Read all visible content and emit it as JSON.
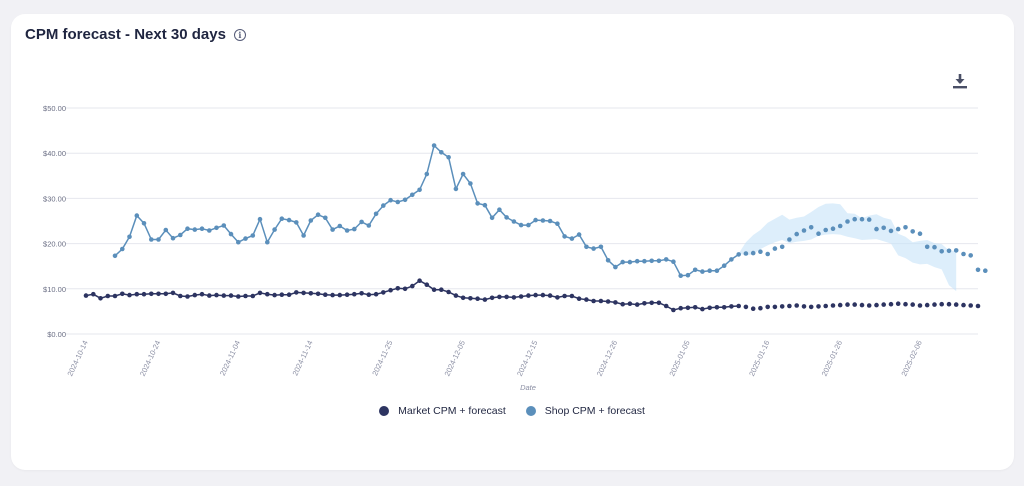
{
  "card": {
    "title": "CPM forecast - Next 30 days",
    "info_icon": "info-icon",
    "download_icon": "download-icon"
  },
  "legend": [
    {
      "label": "Market CPM + forecast",
      "color": "#2d3461"
    },
    {
      "label": "Shop CPM + forecast",
      "color": "#5b8fbb"
    }
  ],
  "chart_data": {
    "type": "line",
    "xlabel": "Date",
    "ylabel": "",
    "ylim": [
      0,
      50
    ],
    "y_ticks": [
      "$0.00",
      "$10.00",
      "$20.00",
      "$30.00",
      "$40.00",
      "$50.00"
    ],
    "y_tick_values": [
      0,
      10,
      20,
      30,
      40,
      50
    ],
    "x_start": "2024-10-14",
    "x_end": "2025-02-11",
    "forecast_start_index": 90,
    "x_tick_labels": [
      "2024-10-14",
      "2024-10-24",
      "2024-11-04",
      "2024-11-14",
      "2024-11-25",
      "2024-12-05",
      "2024-12-15",
      "2024-12-26",
      "2025-01-05",
      "2025-01-16",
      "2025-01-26",
      "2025-02-06"
    ],
    "x_tick_index": [
      0,
      10,
      21,
      31,
      42,
      52,
      62,
      73,
      83,
      94,
      104,
      115
    ],
    "series": [
      {
        "name": "Market CPM + forecast",
        "color": "#2d3461",
        "start_index": 0,
        "values": [
          8.5,
          8.8,
          7.9,
          8.4,
          8.4,
          8.9,
          8.6,
          8.8,
          8.8,
          8.9,
          8.9,
          8.9,
          9.1,
          8.4,
          8.3,
          8.6,
          8.8,
          8.5,
          8.6,
          8.5,
          8.5,
          8.3,
          8.4,
          8.4,
          9.1,
          8.8,
          8.6,
          8.7,
          8.7,
          9.2,
          9.1,
          9.0,
          8.9,
          8.7,
          8.6,
          8.6,
          8.7,
          8.8,
          9.0,
          8.7,
          8.8,
          9.2,
          9.7,
          10.1,
          10.0,
          10.6,
          11.8,
          10.9,
          9.8,
          9.8,
          9.3,
          8.5,
          8.0,
          7.9,
          7.8,
          7.6,
          8.0,
          8.2,
          8.2,
          8.1,
          8.3,
          8.5,
          8.6,
          8.6,
          8.5,
          8.1,
          8.4,
          8.4,
          7.8,
          7.6,
          7.3,
          7.3,
          7.2,
          7.0,
          6.6,
          6.7,
          6.5,
          6.8,
          6.9,
          6.9,
          6.2,
          5.3,
          5.7,
          5.8,
          5.9,
          5.5,
          5.8,
          5.9,
          5.9,
          6.1,
          6.2,
          6.0,
          5.6,
          5.7,
          6.0,
          6.0,
          6.1,
          6.2,
          6.3,
          6.1,
          6.0,
          6.1,
          6.2,
          6.3,
          6.4,
          6.5,
          6.5,
          6.4,
          6.3,
          6.4,
          6.5,
          6.6,
          6.7,
          6.6,
          6.5,
          6.3,
          6.4,
          6.5,
          6.6,
          6.6,
          6.5,
          6.4,
          6.3,
          6.2
        ]
      },
      {
        "name": "Shop CPM + forecast",
        "color": "#5b8fbb",
        "start_index": 4,
        "values": [
          17.3,
          18.8,
          21.5,
          26.2,
          24.5,
          20.9,
          20.9,
          23.0,
          21.2,
          21.9,
          23.3,
          23.1,
          23.3,
          22.9,
          23.5,
          24.0,
          22.1,
          20.3,
          21.1,
          21.8,
          25.4,
          20.3,
          23.1,
          25.5,
          25.2,
          24.7,
          21.8,
          25.1,
          26.4,
          25.7,
          23.1,
          23.9,
          22.9,
          23.2,
          24.8,
          24.0,
          26.6,
          28.4,
          29.6,
          29.2,
          29.7,
          30.8,
          31.9,
          35.4,
          41.7,
          40.2,
          39.1,
          32.1,
          35.4,
          33.3,
          28.9,
          28.5,
          25.7,
          27.5,
          25.8,
          24.9,
          24.1,
          24.1,
          25.2,
          25.1,
          25.0,
          24.4,
          21.6,
          21.1,
          22.0,
          19.3,
          18.9,
          19.3,
          16.3,
          14.8,
          15.9,
          15.9,
          16.1,
          16.1,
          16.2,
          16.2,
          16.5,
          16.0,
          12.9,
          13.0,
          14.2,
          13.8,
          14.0,
          14.0,
          15.1,
          16.5,
          17.6,
          17.8,
          17.9,
          18.2,
          17.7,
          18.9,
          19.3,
          20.9,
          22.1,
          22.9,
          23.6,
          22.2,
          23.0,
          23.3,
          23.9,
          24.9,
          25.4,
          25.4,
          25.3,
          23.2,
          23.5,
          22.8,
          23.2,
          23.6,
          22.7,
          22.2,
          19.3,
          19.2,
          18.3,
          18.4,
          18.5,
          17.7,
          17.4,
          14.2,
          14.0
        ]
      }
    ],
    "confidence_band": {
      "name": "Shop CPM forecast range",
      "color": "#c6e3f8",
      "start_index": 90,
      "lower": [
        17.8,
        17.4,
        17.6,
        18.8,
        19.6,
        20.3,
        20.8,
        20.1,
        20.4,
        20.6,
        20.9,
        21.7,
        22.0,
        22.1,
        22.0,
        21.5,
        21.2,
        20.8,
        20.9,
        21.0,
        20.5,
        20.0,
        17.4,
        16.8,
        15.8,
        15.4,
        15.5,
        14.8,
        14.3,
        10.8,
        9.5
      ],
      "upper": [
        17.8,
        20.3,
        21.9,
        23.0,
        24.6,
        25.5,
        26.4,
        25.3,
        25.7,
        26.0,
        27.0,
        28.1,
        28.8,
        28.9,
        28.7,
        26.7,
        26.6,
        25.6,
        26.2,
        26.5,
        25.7,
        25.3,
        22.2,
        21.5,
        20.3,
        20.6,
        20.8,
        20.1,
        19.9,
        18.5,
        18.3
      ]
    }
  }
}
